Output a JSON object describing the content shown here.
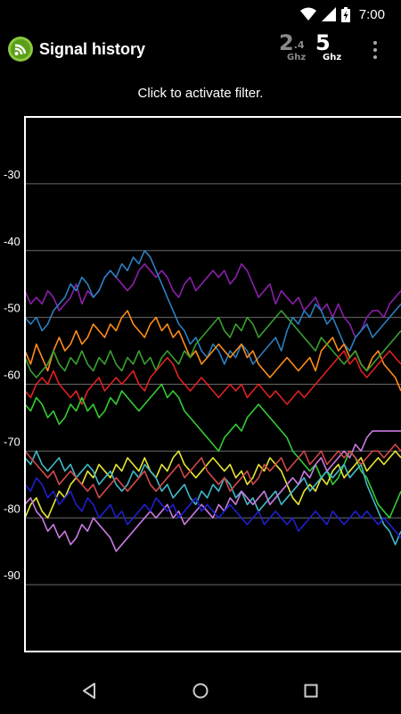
{
  "status_bar": {
    "time": "7:00"
  },
  "app_bar": {
    "title": "Signal history",
    "band_24": {
      "main": "2",
      "sub": ".4",
      "unit": "Ghz"
    },
    "band_5": {
      "main": "5",
      "unit": "Ghz"
    }
  },
  "hint": "Click to activate filter.",
  "chart_data": {
    "type": "line",
    "ylim": [
      -100,
      -20
    ],
    "yticks": [
      -30,
      -40,
      -50,
      -60,
      -70,
      -80,
      -90
    ],
    "grid": true,
    "series": [
      {
        "color": "#8b1fa8",
        "values": [
          -46,
          -48,
          -47,
          -48,
          -46,
          -47,
          -49,
          -48,
          -47,
          -45,
          -48,
          -46,
          -47,
          -46,
          -44,
          -43,
          -44,
          -45,
          -46,
          -45,
          -43,
          -42,
          -43,
          -44,
          -43,
          -44,
          -46,
          -47,
          -45,
          -44,
          -46,
          -45,
          -44,
          -43,
          -44,
          -43,
          -45,
          -44,
          -42,
          -43,
          -45,
          -47,
          -46,
          -45,
          -48,
          -46,
          -47,
          -48,
          -47,
          -49,
          -48,
          -47,
          -49,
          -48,
          -50,
          -48,
          -50,
          -51,
          -53,
          -52,
          -50,
          -49,
          -49,
          -50,
          -48,
          -47,
          -46
        ]
      },
      {
        "color": "#2a7fc0",
        "values": [
          -50,
          -51,
          -50,
          -52,
          -51,
          -49,
          -48,
          -47,
          -45,
          -46,
          -44,
          -45,
          -47,
          -46,
          -44,
          -43,
          -44,
          -42,
          -43,
          -41,
          -42,
          -40,
          -41,
          -43,
          -45,
          -47,
          -49,
          -51,
          -52,
          -54,
          -53,
          -55,
          -56,
          -54,
          -55,
          -57,
          -55,
          -56,
          -54,
          -55,
          -57,
          -56,
          -55,
          -54,
          -53,
          -55,
          -52,
          -50,
          -51,
          -49,
          -50,
          -48,
          -49,
          -51,
          -50,
          -52,
          -54,
          -55,
          -53,
          -52,
          -51,
          -53,
          -52,
          -51,
          -50,
          -49,
          -48
        ]
      },
      {
        "color": "#ff8c1a",
        "values": [
          -55,
          -57,
          -54,
          -56,
          -58,
          -55,
          -53,
          -55,
          -54,
          -52,
          -54,
          -53,
          -51,
          -52,
          -53,
          -51,
          -52,
          -50,
          -49,
          -51,
          -52,
          -53,
          -51,
          -50,
          -52,
          -51,
          -53,
          -52,
          -54,
          -56,
          -55,
          -57,
          -56,
          -55,
          -54,
          -55,
          -56,
          -55,
          -54,
          -56,
          -55,
          -57,
          -58,
          -59,
          -58,
          -57,
          -56,
          -57,
          -58,
          -57,
          -56,
          -58,
          -55,
          -54,
          -53,
          -55,
          -54,
          -56,
          -55,
          -57,
          -58,
          -56,
          -55,
          -57,
          -58,
          -59,
          -61
        ]
      },
      {
        "color": "#3aa030",
        "values": [
          -56,
          -58,
          -59,
          -58,
          -57,
          -55,
          -57,
          -58,
          -56,
          -57,
          -55,
          -57,
          -58,
          -56,
          -57,
          -55,
          -57,
          -58,
          -56,
          -57,
          -55,
          -57,
          -56,
          -58,
          -56,
          -55,
          -56,
          -57,
          -55,
          -56,
          -54,
          -53,
          -52,
          -51,
          -50,
          -52,
          -53,
          -51,
          -52,
          -50,
          -51,
          -53,
          -52,
          -51,
          -50,
          -49,
          -50,
          -51,
          -52,
          -53,
          -54,
          -55,
          -53,
          -54,
          -55,
          -56,
          -57,
          -56,
          -55,
          -57,
          -58,
          -57,
          -56,
          -55,
          -54,
          -53,
          -52
        ]
      },
      {
        "color": "#e02020",
        "values": [
          -61,
          -62,
          -60,
          -59,
          -60,
          -58,
          -60,
          -61,
          -62,
          -61,
          -63,
          -61,
          -60,
          -59,
          -61,
          -60,
          -59,
          -60,
          -59,
          -58,
          -60,
          -61,
          -59,
          -58,
          -57,
          -56,
          -57,
          -59,
          -60,
          -61,
          -60,
          -59,
          -60,
          -61,
          -62,
          -61,
          -60,
          -61,
          -60,
          -62,
          -61,
          -60,
          -61,
          -62,
          -61,
          -62,
          -63,
          -62,
          -61,
          -62,
          -61,
          -60,
          -59,
          -58,
          -57,
          -56,
          -55,
          -57,
          -56,
          -58,
          -59,
          -58,
          -57,
          -56,
          -55,
          -56,
          -57
        ]
      },
      {
        "color": "#33cc33",
        "values": [
          -63,
          -64,
          -62,
          -63,
          -65,
          -64,
          -66,
          -65,
          -63,
          -64,
          -62,
          -64,
          -63,
          -65,
          -64,
          -62,
          -63,
          -61,
          -62,
          -63,
          -64,
          -63,
          -62,
          -61,
          -60,
          -62,
          -61,
          -62,
          -64,
          -65,
          -66,
          -67,
          -68,
          -69,
          -70,
          -68,
          -67,
          -66,
          -67,
          -65,
          -64,
          -63,
          -64,
          -65,
          -66,
          -67,
          -68,
          -70,
          -71,
          -72,
          -73,
          -72,
          -74,
          -73,
          -75,
          -74,
          -72,
          -70,
          -71,
          -73,
          -74,
          -76,
          -78,
          -79,
          -80,
          -78,
          -76
        ]
      },
      {
        "color": "#e6e633",
        "values": [
          -80,
          -78,
          -77,
          -79,
          -80,
          -78,
          -76,
          -77,
          -75,
          -74,
          -75,
          -73,
          -74,
          -72,
          -73,
          -74,
          -72,
          -73,
          -71,
          -72,
          -73,
          -71,
          -73,
          -74,
          -72,
          -73,
          -71,
          -70,
          -72,
          -73,
          -74,
          -73,
          -72,
          -71,
          -72,
          -73,
          -72,
          -74,
          -73,
          -75,
          -74,
          -72,
          -73,
          -71,
          -72,
          -73,
          -75,
          -77,
          -78,
          -76,
          -75,
          -76,
          -74,
          -75,
          -73,
          -72,
          -74,
          -73,
          -72,
          -71,
          -73,
          -72,
          -71,
          -72,
          -71,
          -70,
          -71
        ]
      },
      {
        "color": "#40b8c8",
        "values": [
          -71,
          -72,
          -70,
          -72,
          -73,
          -72,
          -71,
          -73,
          -72,
          -74,
          -73,
          -72,
          -73,
          -75,
          -74,
          -73,
          -75,
          -76,
          -75,
          -73,
          -74,
          -72,
          -73,
          -74,
          -76,
          -75,
          -77,
          -76,
          -75,
          -77,
          -78,
          -76,
          -77,
          -75,
          -76,
          -74,
          -75,
          -77,
          -76,
          -78,
          -77,
          -79,
          -78,
          -77,
          -76,
          -78,
          -77,
          -76,
          -75,
          -74,
          -76,
          -75,
          -74,
          -73,
          -74,
          -73,
          -72,
          -74,
          -73,
          -72,
          -75,
          -77,
          -79,
          -81,
          -82,
          -84,
          -82
        ]
      },
      {
        "color": "#c87ae0",
        "values": [
          -78,
          -77,
          -79,
          -80,
          -82,
          -81,
          -83,
          -82,
          -84,
          -83,
          -81,
          -82,
          -80,
          -81,
          -82,
          -83,
          -85,
          -84,
          -83,
          -82,
          -81,
          -80,
          -79,
          -80,
          -79,
          -78,
          -80,
          -79,
          -81,
          -80,
          -79,
          -78,
          -79,
          -80,
          -78,
          -79,
          -77,
          -78,
          -76,
          -77,
          -78,
          -77,
          -76,
          -78,
          -77,
          -76,
          -75,
          -74,
          -75,
          -73,
          -74,
          -72,
          -71,
          -73,
          -72,
          -71,
          -70,
          -71,
          -69,
          -70,
          -68,
          -67,
          -67,
          -67,
          -67,
          -67,
          -67
        ]
      },
      {
        "color": "#1f1fcc",
        "values": [
          -75,
          -76,
          -74,
          -75,
          -77,
          -76,
          -78,
          -77,
          -76,
          -78,
          -79,
          -77,
          -78,
          -80,
          -79,
          -78,
          -80,
          -79,
          -81,
          -80,
          -79,
          -78,
          -79,
          -77,
          -78,
          -79,
          -78,
          -80,
          -79,
          -78,
          -77,
          -79,
          -78,
          -79,
          -80,
          -79,
          -78,
          -79,
          -80,
          -81,
          -80,
          -79,
          -81,
          -80,
          -79,
          -80,
          -81,
          -80,
          -82,
          -81,
          -80,
          -79,
          -80,
          -81,
          -79,
          -80,
          -81,
          -80,
          -79,
          -80,
          -79,
          -80,
          -81,
          -80,
          -81,
          -82,
          -83
        ]
      },
      {
        "color": "#d04848",
        "values": [
          -70,
          -71,
          -72,
          -73,
          -74,
          -73,
          -75,
          -74,
          -73,
          -74,
          -75,
          -76,
          -75,
          -77,
          -76,
          -75,
          -74,
          -75,
          -76,
          -75,
          -74,
          -73,
          -75,
          -76,
          -75,
          -74,
          -73,
          -72,
          -74,
          -73,
          -72,
          -71,
          -73,
          -74,
          -75,
          -74,
          -76,
          -75,
          -74,
          -73,
          -75,
          -74,
          -72,
          -73,
          -72,
          -71,
          -73,
          -72,
          -71,
          -70,
          -72,
          -71,
          -70,
          -72,
          -71,
          -70,
          -71,
          -70,
          -71,
          -72,
          -71,
          -70,
          -70,
          -71,
          -70,
          -69,
          -70
        ]
      }
    ]
  }
}
